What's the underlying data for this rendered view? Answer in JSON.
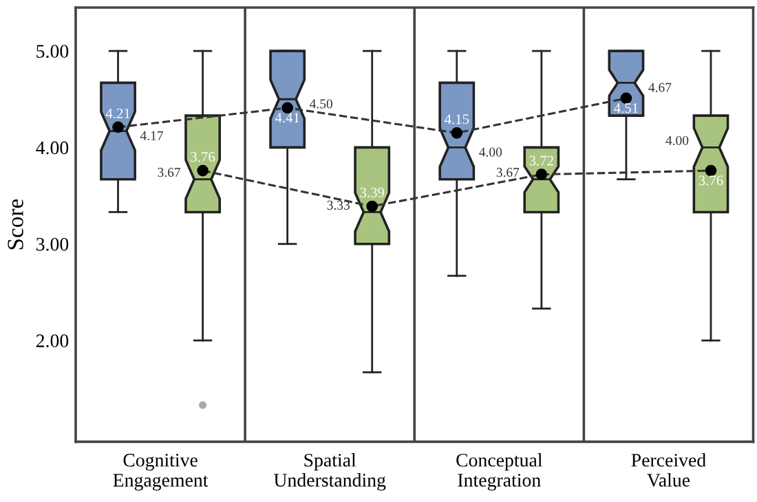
{
  "chart_data": {
    "type": "box",
    "ylabel": "Score",
    "categories": [
      "Cognitive\nEngagement",
      "Spatial\nUnderstanding",
      "Conceptual\nIntegration",
      "Perceived\nValue"
    ],
    "series": [
      {
        "color": "#7b97c4",
        "boxes": [
          {
            "low": 3.33,
            "q1": 3.67,
            "median": 4.17,
            "q3": 4.67,
            "high": 5.0,
            "mean": 4.21
          },
          {
            "low": 3.0,
            "q1": 4.0,
            "median": 4.5,
            "q3": 5.0,
            "high": 5.0,
            "mean": 4.41
          },
          {
            "low": 2.67,
            "q1": 3.67,
            "median": 4.0,
            "q3": 4.67,
            "high": 5.0,
            "mean": 4.15
          },
          {
            "low": 3.67,
            "q1": 4.33,
            "median": 4.67,
            "q3": 5.0,
            "high": 5.0,
            "mean": 4.51
          }
        ]
      },
      {
        "color": "#a9c47f",
        "boxes": [
          {
            "low": 2.0,
            "q1": 3.33,
            "median": 3.67,
            "q3": 4.33,
            "high": 5.0,
            "mean": 3.76,
            "outliers": [
              1.33
            ]
          },
          {
            "low": 1.67,
            "q1": 3.0,
            "median": 3.33,
            "q3": 4.0,
            "high": 5.0,
            "mean": 3.39
          },
          {
            "low": 2.33,
            "q1": 3.33,
            "median": 3.67,
            "q3": 4.0,
            "high": 5.0,
            "mean": 3.72
          },
          {
            "low": 2.0,
            "q1": 3.33,
            "median": 4.0,
            "q3": 4.33,
            "high": 5.0,
            "mean": 3.76
          }
        ]
      }
    ],
    "ylim": [
      0.95,
      5.45
    ],
    "yticks": [
      {
        "value": 2,
        "label": "2.00"
      },
      {
        "value": 3,
        "label": "3.00"
      },
      {
        "value": 4,
        "label": "4.00"
      },
      {
        "value": 5,
        "label": "5.00"
      }
    ],
    "annotations": [
      "4.21",
      "4.17",
      "4.41",
      "4.50",
      "4.15",
      "4.00",
      "4.51",
      "4.67",
      "3.76",
      "3.67",
      "3.39",
      "3.33",
      "3.72",
      "3.67",
      "3.76",
      "4.00"
    ],
    "line_style": "dashed",
    "marker": "circle",
    "grid": false,
    "legend": false
  }
}
